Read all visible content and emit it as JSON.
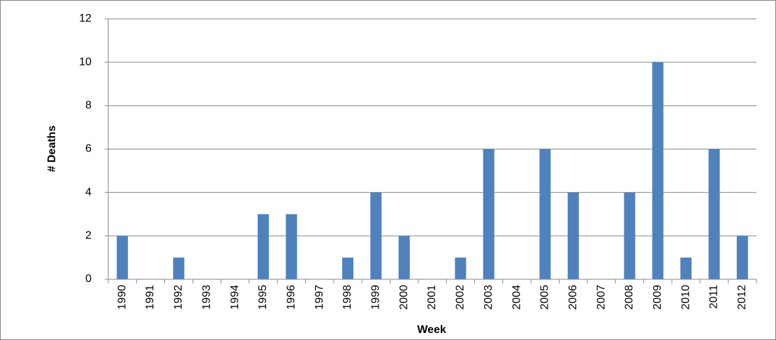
{
  "chart_data": {
    "type": "bar",
    "x_label": "Week",
    "y_label": "# Deaths",
    "categories": [
      "1990",
      "1991",
      "1992",
      "1993",
      "1994",
      "1995",
      "1996",
      "1997",
      "1998",
      "1999",
      "2000",
      "2001",
      "2002",
      "2003",
      "2004",
      "2005",
      "2006",
      "2007",
      "2008",
      "2009",
      "2010",
      "2011",
      "2012"
    ],
    "values": [
      2,
      0,
      1,
      0,
      0,
      3,
      3,
      0,
      1,
      4,
      2,
      0,
      1,
      6,
      0,
      6,
      4,
      0,
      4,
      10,
      1,
      6,
      2
    ],
    "color": "#4f81bd",
    "ylim": [
      0,
      12
    ],
    "yticks": [
      0,
      2,
      4,
      6,
      8,
      10,
      12
    ],
    "grid": true
  }
}
